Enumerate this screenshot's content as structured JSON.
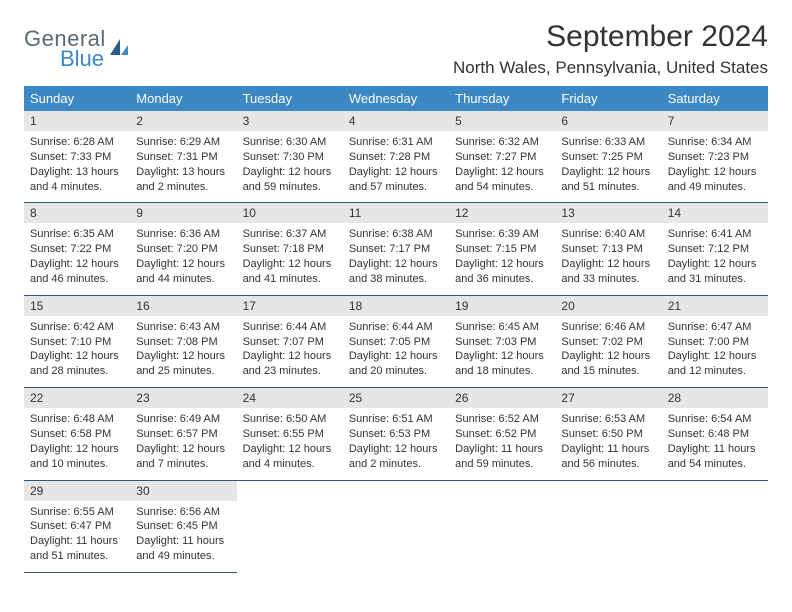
{
  "logo": {
    "main": "General",
    "sub": "Blue"
  },
  "title": "September 2024",
  "location": "North Wales, Pennsylvania, United States",
  "colors": {
    "header_bg": "#3b88c4",
    "header_text": "#ffffff",
    "daynum_bg": "#e6e6e6",
    "border": "#2d5a7a",
    "body_text": "#333333",
    "logo_gray": "#5a6a78",
    "logo_blue": "#3b88c4"
  },
  "typography": {
    "title_fontsize": 30,
    "location_fontsize": 17,
    "header_fontsize": 13,
    "daynum_fontsize": 12,
    "body_fontsize": 11
  },
  "day_headers": [
    "Sunday",
    "Monday",
    "Tuesday",
    "Wednesday",
    "Thursday",
    "Friday",
    "Saturday"
  ],
  "weeks": [
    [
      {
        "num": "1",
        "sunrise": "Sunrise: 6:28 AM",
        "sunset": "Sunset: 7:33 PM",
        "daylight": "Daylight: 13 hours and 4 minutes."
      },
      {
        "num": "2",
        "sunrise": "Sunrise: 6:29 AM",
        "sunset": "Sunset: 7:31 PM",
        "daylight": "Daylight: 13 hours and 2 minutes."
      },
      {
        "num": "3",
        "sunrise": "Sunrise: 6:30 AM",
        "sunset": "Sunset: 7:30 PM",
        "daylight": "Daylight: 12 hours and 59 minutes."
      },
      {
        "num": "4",
        "sunrise": "Sunrise: 6:31 AM",
        "sunset": "Sunset: 7:28 PM",
        "daylight": "Daylight: 12 hours and 57 minutes."
      },
      {
        "num": "5",
        "sunrise": "Sunrise: 6:32 AM",
        "sunset": "Sunset: 7:27 PM",
        "daylight": "Daylight: 12 hours and 54 minutes."
      },
      {
        "num": "6",
        "sunrise": "Sunrise: 6:33 AM",
        "sunset": "Sunset: 7:25 PM",
        "daylight": "Daylight: 12 hours and 51 minutes."
      },
      {
        "num": "7",
        "sunrise": "Sunrise: 6:34 AM",
        "sunset": "Sunset: 7:23 PM",
        "daylight": "Daylight: 12 hours and 49 minutes."
      }
    ],
    [
      {
        "num": "8",
        "sunrise": "Sunrise: 6:35 AM",
        "sunset": "Sunset: 7:22 PM",
        "daylight": "Daylight: 12 hours and 46 minutes."
      },
      {
        "num": "9",
        "sunrise": "Sunrise: 6:36 AM",
        "sunset": "Sunset: 7:20 PM",
        "daylight": "Daylight: 12 hours and 44 minutes."
      },
      {
        "num": "10",
        "sunrise": "Sunrise: 6:37 AM",
        "sunset": "Sunset: 7:18 PM",
        "daylight": "Daylight: 12 hours and 41 minutes."
      },
      {
        "num": "11",
        "sunrise": "Sunrise: 6:38 AM",
        "sunset": "Sunset: 7:17 PM",
        "daylight": "Daylight: 12 hours and 38 minutes."
      },
      {
        "num": "12",
        "sunrise": "Sunrise: 6:39 AM",
        "sunset": "Sunset: 7:15 PM",
        "daylight": "Daylight: 12 hours and 36 minutes."
      },
      {
        "num": "13",
        "sunrise": "Sunrise: 6:40 AM",
        "sunset": "Sunset: 7:13 PM",
        "daylight": "Daylight: 12 hours and 33 minutes."
      },
      {
        "num": "14",
        "sunrise": "Sunrise: 6:41 AM",
        "sunset": "Sunset: 7:12 PM",
        "daylight": "Daylight: 12 hours and 31 minutes."
      }
    ],
    [
      {
        "num": "15",
        "sunrise": "Sunrise: 6:42 AM",
        "sunset": "Sunset: 7:10 PM",
        "daylight": "Daylight: 12 hours and 28 minutes."
      },
      {
        "num": "16",
        "sunrise": "Sunrise: 6:43 AM",
        "sunset": "Sunset: 7:08 PM",
        "daylight": "Daylight: 12 hours and 25 minutes."
      },
      {
        "num": "17",
        "sunrise": "Sunrise: 6:44 AM",
        "sunset": "Sunset: 7:07 PM",
        "daylight": "Daylight: 12 hours and 23 minutes."
      },
      {
        "num": "18",
        "sunrise": "Sunrise: 6:44 AM",
        "sunset": "Sunset: 7:05 PM",
        "daylight": "Daylight: 12 hours and 20 minutes."
      },
      {
        "num": "19",
        "sunrise": "Sunrise: 6:45 AM",
        "sunset": "Sunset: 7:03 PM",
        "daylight": "Daylight: 12 hours and 18 minutes."
      },
      {
        "num": "20",
        "sunrise": "Sunrise: 6:46 AM",
        "sunset": "Sunset: 7:02 PM",
        "daylight": "Daylight: 12 hours and 15 minutes."
      },
      {
        "num": "21",
        "sunrise": "Sunrise: 6:47 AM",
        "sunset": "Sunset: 7:00 PM",
        "daylight": "Daylight: 12 hours and 12 minutes."
      }
    ],
    [
      {
        "num": "22",
        "sunrise": "Sunrise: 6:48 AM",
        "sunset": "Sunset: 6:58 PM",
        "daylight": "Daylight: 12 hours and 10 minutes."
      },
      {
        "num": "23",
        "sunrise": "Sunrise: 6:49 AM",
        "sunset": "Sunset: 6:57 PM",
        "daylight": "Daylight: 12 hours and 7 minutes."
      },
      {
        "num": "24",
        "sunrise": "Sunrise: 6:50 AM",
        "sunset": "Sunset: 6:55 PM",
        "daylight": "Daylight: 12 hours and 4 minutes."
      },
      {
        "num": "25",
        "sunrise": "Sunrise: 6:51 AM",
        "sunset": "Sunset: 6:53 PM",
        "daylight": "Daylight: 12 hours and 2 minutes."
      },
      {
        "num": "26",
        "sunrise": "Sunrise: 6:52 AM",
        "sunset": "Sunset: 6:52 PM",
        "daylight": "Daylight: 11 hours and 59 minutes."
      },
      {
        "num": "27",
        "sunrise": "Sunrise: 6:53 AM",
        "sunset": "Sunset: 6:50 PM",
        "daylight": "Daylight: 11 hours and 56 minutes."
      },
      {
        "num": "28",
        "sunrise": "Sunrise: 6:54 AM",
        "sunset": "Sunset: 6:48 PM",
        "daylight": "Daylight: 11 hours and 54 minutes."
      }
    ],
    [
      {
        "num": "29",
        "sunrise": "Sunrise: 6:55 AM",
        "sunset": "Sunset: 6:47 PM",
        "daylight": "Daylight: 11 hours and 51 minutes."
      },
      {
        "num": "30",
        "sunrise": "Sunrise: 6:56 AM",
        "sunset": "Sunset: 6:45 PM",
        "daylight": "Daylight: 11 hours and 49 minutes."
      },
      null,
      null,
      null,
      null,
      null
    ]
  ]
}
